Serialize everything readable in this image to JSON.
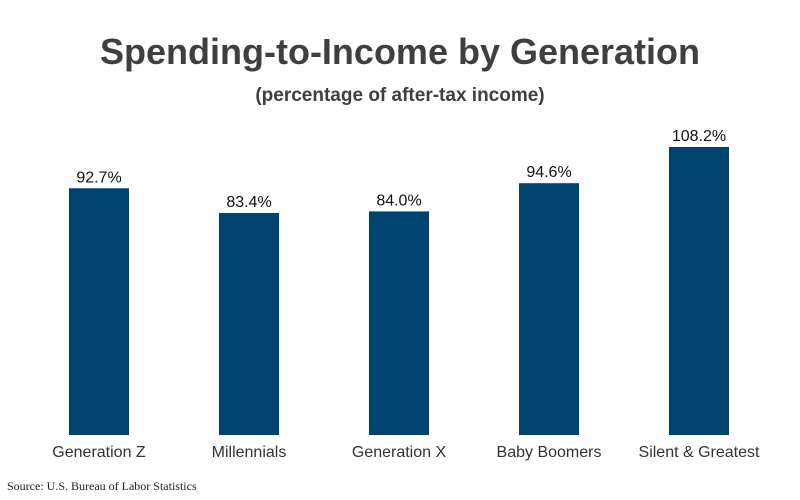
{
  "chart_data": {
    "type": "bar",
    "title": "Spending-to-Income by Generation",
    "subtitle": "(percentage of after-tax income)",
    "categories": [
      "Generation Z",
      "Millennials",
      "Generation X",
      "Baby Boomers",
      "Silent & Greatest"
    ],
    "values": [
      92.7,
      83.4,
      84.0,
      94.6,
      108.2
    ],
    "value_labels": [
      "92.7%",
      "83.4%",
      "84.0%",
      "94.6%",
      "108.2%"
    ],
    "ylim": [
      0,
      110
    ],
    "grid": false,
    "legend": "none",
    "colors": {
      "bar": "#004370"
    }
  },
  "source": "Source: U.S. Bureau of Labor Statistics"
}
